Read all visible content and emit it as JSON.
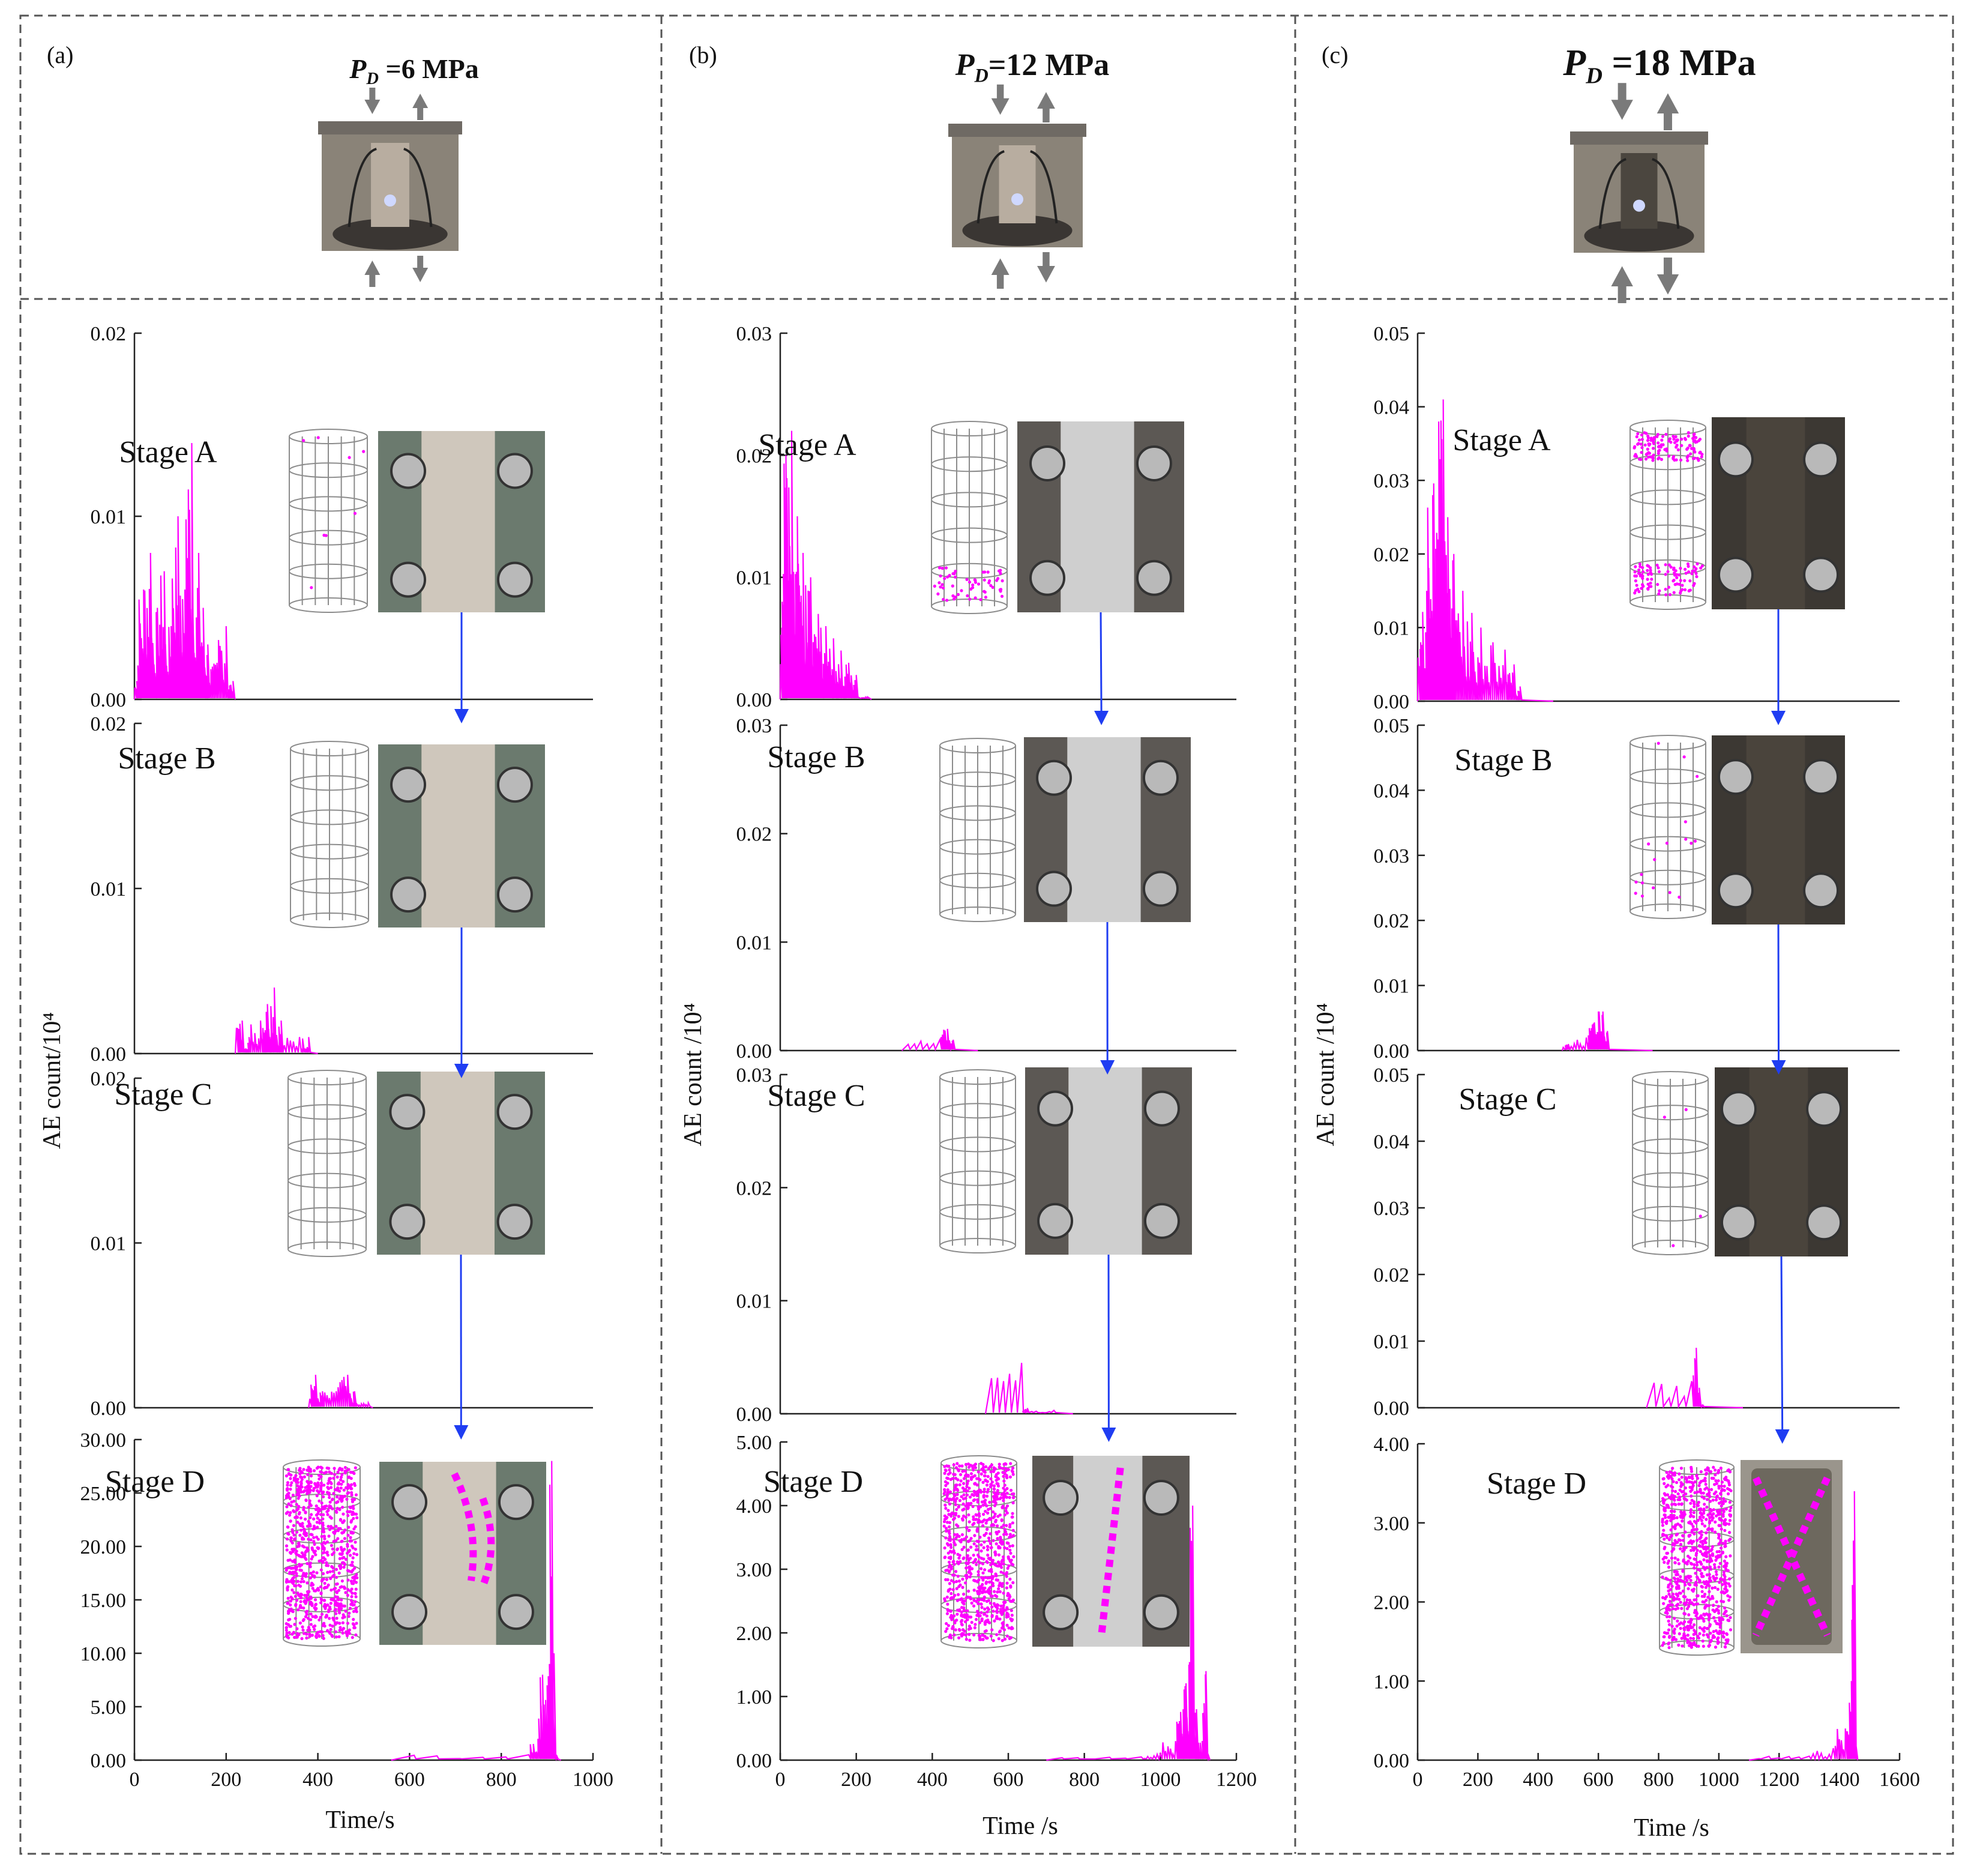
{
  "colors": {
    "signal": "#ff00ff",
    "arrow": "#1f3df2",
    "axis": "#222222",
    "frame": "#555555",
    "gray_arrow": "#7a7a7a",
    "rock_photo_a": "#cfc7bc",
    "rock_photo_b": "#cfcfcf",
    "rock_photo_c": "#4a443c",
    "photo_bg": "#6b7a6e"
  },
  "panels": [
    {
      "id": "a",
      "label": "(a)",
      "pd_prefix": "P",
      "pd_sub": "D",
      "pd_value": " =6 MPa",
      "icon": "loading-apparatus-icon",
      "ylabel": "AE count/10⁴",
      "xlabel": "Time/s",
      "xticks": [
        "0",
        "200",
        "400",
        "600",
        "800",
        "1000"
      ],
      "xlim": [
        0,
        1000
      ]
    },
    {
      "id": "b",
      "label": "(b)",
      "pd_prefix": "P",
      "pd_sub": "D",
      "pd_value": "=12 MPa",
      "icon": "loading-apparatus-icon",
      "ylabel": "AE count /10⁴",
      "xlabel": "Time /s",
      "xticks": [
        "0",
        "200",
        "400",
        "600",
        "800",
        "1000",
        "1200"
      ],
      "xlim": [
        0,
        1200
      ]
    },
    {
      "id": "c",
      "label": "(c)",
      "pd_prefix": "P",
      "pd_sub": "D",
      "pd_value": " =18 MPa",
      "icon": "loading-apparatus-icon",
      "ylabel": "AE count /10⁴",
      "xlabel": "Time /s",
      "xticks": [
        "0",
        "200",
        "400",
        "600",
        "800",
        "1000",
        "1200",
        "1400",
        "1600"
      ],
      "xlim": [
        0,
        1600
      ]
    }
  ],
  "stages": [
    "Stage A",
    "Stage B",
    "Stage C",
    "Stage D"
  ],
  "chart_data": [
    {
      "type": "line",
      "panel": "a",
      "subplots": [
        {
          "stage": "Stage A",
          "yticks": [
            "0.00",
            "0.01",
            "0.02"
          ],
          "ylim": [
            0,
            0.02
          ],
          "series": [
            {
              "name": "AE count",
              "peaks": [
                [
                  5,
                  0.001
                ],
                [
                  20,
                  0.006
                ],
                [
                  35,
                  0.008
                ],
                [
                  50,
                  0.005
                ],
                [
                  65,
                  0.007
                ],
                [
                  80,
                  0.004
                ],
                [
                  95,
                  0.01
                ],
                [
                  110,
                  0.006
                ],
                [
                  125,
                  0.014
                ],
                [
                  140,
                  0.008
                ],
                [
                  150,
                  0.005
                ],
                [
                  160,
                  0.003
                ],
                [
                  180,
                  0.002
                ],
                [
                  200,
                  0.004
                ],
                [
                  215,
                  0.001
                ]
              ],
              "range": [
                0,
                220
              ]
            }
          ]
        },
        {
          "stage": "Stage B",
          "yticks": [
            "0.00",
            "0.01",
            "0.02"
          ],
          "ylim": [
            0,
            0.02
          ],
          "series": [
            {
              "name": "AE count",
              "peaks": [
                [
                  235,
                  0.002
                ],
                [
                  250,
                  0.001
                ],
                [
                  275,
                  0.002
                ],
                [
                  290,
                  0.003
                ],
                [
                  305,
                  0.004
                ],
                [
                  320,
                  0.002
                ],
                [
                  360,
                  0.001
                ],
                [
                  380,
                  0.001
                ]
              ],
              "range": [
                220,
                400
              ]
            }
          ]
        },
        {
          "stage": "Stage C",
          "yticks": [
            "0.00",
            "0.01",
            "0.02"
          ],
          "ylim": [
            0,
            0.02
          ],
          "series": [
            {
              "name": "AE count",
              "peaks": [
                [
                  395,
                  0.002
                ],
                [
                  410,
                  0.001
                ],
                [
                  440,
                  0.001
                ],
                [
                  465,
                  0.002
                ],
                [
                  480,
                  0.001
                ],
                [
                  510,
                  0.0003
                ]
              ],
              "range": [
                380,
                520
              ]
            }
          ]
        },
        {
          "stage": "Stage D",
          "yticks": [
            "0.00",
            "5.00",
            "10.00",
            "15.00",
            "20.00",
            "25.00",
            "30.00"
          ],
          "ylim": [
            0,
            30
          ],
          "series": [
            {
              "name": "AE count",
              "peaks": [
                [
                  860,
                  0.5
                ],
                [
                  880,
                  2
                ],
                [
                  890,
                  8
                ],
                [
                  900,
                  7
                ],
                [
                  905,
                  9
                ],
                [
                  910,
                  28
                ],
                [
                  915,
                  10
                ],
                [
                  920,
                  0.5
                ]
              ],
              "range": [
                560,
                930
              ]
            }
          ]
        }
      ]
    },
    {
      "type": "line",
      "panel": "b",
      "subplots": [
        {
          "stage": "Stage A",
          "yticks": [
            "0.00",
            "0.01",
            "0.02",
            "0.03"
          ],
          "ylim": [
            0,
            0.03
          ],
          "series": [
            {
              "name": "AE count",
              "peaks": [
                [
                  5,
                  0.008
                ],
                [
                  15,
                  0.02
                ],
                [
                  30,
                  0.022
                ],
                [
                  45,
                  0.015
                ],
                [
                  60,
                  0.012
                ],
                [
                  80,
                  0.01
                ],
                [
                  100,
                  0.007
                ],
                [
                  120,
                  0.006
                ],
                [
                  140,
                  0.005
                ],
                [
                  160,
                  0.004
                ],
                [
                  180,
                  0.003
                ],
                [
                  200,
                  0.002
                ],
                [
                  230,
                  0.0002
                ]
              ],
              "range": [
                0,
                240
              ]
            }
          ]
        },
        {
          "stage": "Stage B",
          "yticks": [
            "0.00",
            "0.01",
            "0.02",
            "0.03"
          ],
          "ylim": [
            0,
            0.03
          ],
          "series": [
            {
              "name": "AE count",
              "peaks": [
                [
                  420,
                  0.001
                ],
                [
                  440,
                  0.002
                ],
                [
                  455,
                  0.001
                ]
              ],
              "range": [
                320,
                520
              ]
            }
          ]
        },
        {
          "stage": "Stage C",
          "yticks": [
            "0.00",
            "0.01",
            "0.02",
            "0.03"
          ],
          "ylim": [
            0,
            0.03
          ],
          "series": [
            {
              "name": "AE count",
              "peaks": [
                [
                  635,
                  0.0045
                ],
                [
                  650,
                  0.0005
                ],
                [
                  720,
                  0.0003
                ]
              ],
              "range": [
                540,
                770
              ]
            }
          ]
        },
        {
          "stage": "Stage D",
          "yticks": [
            "0.00",
            "1.00",
            "2.00",
            "3.00",
            "4.00",
            "5.00"
          ],
          "ylim": [
            0,
            5
          ],
          "series": [
            {
              "name": "AE count",
              "peaks": [
                [
                  950,
                  0.05
                ],
                [
                  1000,
                  0.1
                ],
                [
                  1040,
                  0.3
                ],
                [
                  1060,
                  0.8
                ],
                [
                  1075,
                  1.5
                ],
                [
                  1085,
                  4.0
                ],
                [
                  1095,
                  0.8
                ],
                [
                  1110,
                  0.3
                ],
                [
                  1120,
                  1.4
                ],
                [
                  1125,
                  0.1
                ]
              ],
              "range": [
                700,
                1130
              ]
            }
          ]
        }
      ]
    },
    {
      "type": "line",
      "panel": "c",
      "subplots": [
        {
          "stage": "Stage A",
          "yticks": [
            "0.00",
            "0.01",
            "0.02",
            "0.03",
            "0.04",
            "0.05"
          ],
          "ylim": [
            0,
            0.05
          ],
          "series": [
            {
              "name": "AE count",
              "peaks": [
                [
                  10,
                  0.008
                ],
                [
                  30,
                  0.015
                ],
                [
                  50,
                  0.028
                ],
                [
                  70,
                  0.038
                ],
                [
                  85,
                  0.041
                ],
                [
                  100,
                  0.025
                ],
                [
                  120,
                  0.02
                ],
                [
                  150,
                  0.015
                ],
                [
                  180,
                  0.012
                ],
                [
                  210,
                  0.01
                ],
                [
                  250,
                  0.008
                ],
                [
                  290,
                  0.007
                ],
                [
                  320,
                  0.005
                ],
                [
                  340,
                  0.002
                ]
              ],
              "range": [
                0,
                450
              ]
            }
          ]
        },
        {
          "stage": "Stage B",
          "yticks": [
            "0.00",
            "0.01",
            "0.02",
            "0.03",
            "0.04",
            "0.05"
          ],
          "ylim": [
            0,
            0.05
          ],
          "series": [
            {
              "name": "AE count",
              "peaks": [
                [
                  500,
                  0.001
                ],
                [
                  560,
                  0.002
                ],
                [
                  580,
                  0.004
                ],
                [
                  600,
                  0.006
                ],
                [
                  615,
                  0.006
                ],
                [
                  630,
                  0.003
                ]
              ],
              "range": [
                480,
                780
              ]
            }
          ]
        },
        {
          "stage": "Stage C",
          "yticks": [
            "0.00",
            "0.01",
            "0.02",
            "0.03",
            "0.04",
            "0.05"
          ],
          "ylim": [
            0,
            0.05
          ],
          "series": [
            {
              "name": "AE count",
              "peaks": [
                [
                  910,
                  0.004
                ],
                [
                  925,
                  0.009
                ],
                [
                  935,
                  0.003
                ],
                [
                  945,
                  0.0005
                ]
              ],
              "range": [
                760,
                1080
              ]
            }
          ]
        },
        {
          "stage": "Stage D",
          "yticks": [
            "0.00",
            "1.00",
            "2.00",
            "3.00",
            "4.00"
          ],
          "ylim": [
            0,
            4
          ],
          "series": [
            {
              "name": "AE count",
              "peaks": [
                [
                  1300,
                  0.05
                ],
                [
                  1380,
                  0.15
                ],
                [
                  1420,
                  0.4
                ],
                [
                  1440,
                  1.0
                ],
                [
                  1450,
                  3.4
                ],
                [
                  1455,
                  0.2
                ]
              ],
              "range": [
                1100,
                1460
              ]
            }
          ]
        }
      ]
    }
  ]
}
